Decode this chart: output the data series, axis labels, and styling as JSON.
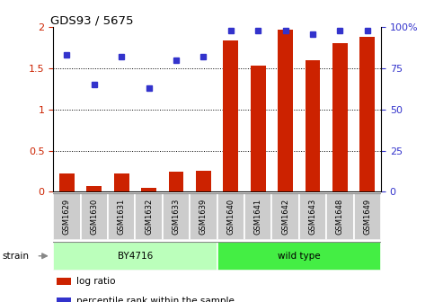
{
  "title": "GDS93 / 5675",
  "samples": [
    "GSM1629",
    "GSM1630",
    "GSM1631",
    "GSM1632",
    "GSM1633",
    "GSM1639",
    "GSM1640",
    "GSM1641",
    "GSM1642",
    "GSM1643",
    "GSM1648",
    "GSM1649"
  ],
  "log_ratio": [
    0.22,
    0.07,
    0.22,
    0.05,
    0.24,
    0.26,
    1.84,
    1.53,
    1.97,
    1.6,
    1.81,
    1.88
  ],
  "percentile_rank": [
    83,
    65,
    82,
    63,
    80,
    82,
    98,
    98,
    98,
    96,
    98,
    98
  ],
  "bar_color": "#cc2200",
  "dot_color": "#3333cc",
  "strain_groups": [
    {
      "label": "BY4716",
      "start": 0,
      "end": 6,
      "color": "#bbffbb"
    },
    {
      "label": "wild type",
      "start": 6,
      "end": 12,
      "color": "#44ee44"
    }
  ],
  "ylim_left": [
    0,
    2.0
  ],
  "yticks_left": [
    0,
    0.5,
    1.0,
    1.5,
    2.0
  ],
  "ytick_labels_left": [
    "0",
    "0.5",
    "1",
    "1.5",
    "2"
  ],
  "ylim_right": [
    0,
    100
  ],
  "yticks_right": [
    0,
    25,
    50,
    75,
    100
  ],
  "ytick_labels_right": [
    "0",
    "25",
    "50",
    "75",
    "100%"
  ],
  "ylabel_left_color": "#cc2200",
  "ylabel_right_color": "#3333cc",
  "grid_yticks": [
    0.5,
    1.0,
    1.5
  ],
  "legend_items": [
    {
      "label": "log ratio",
      "color": "#cc2200"
    },
    {
      "label": "percentile rank within the sample",
      "color": "#3333cc"
    }
  ],
  "strain_label": "strain",
  "bar_width": 0.55,
  "tick_area_color": "#cccccc",
  "tick_area_border": "#888888"
}
